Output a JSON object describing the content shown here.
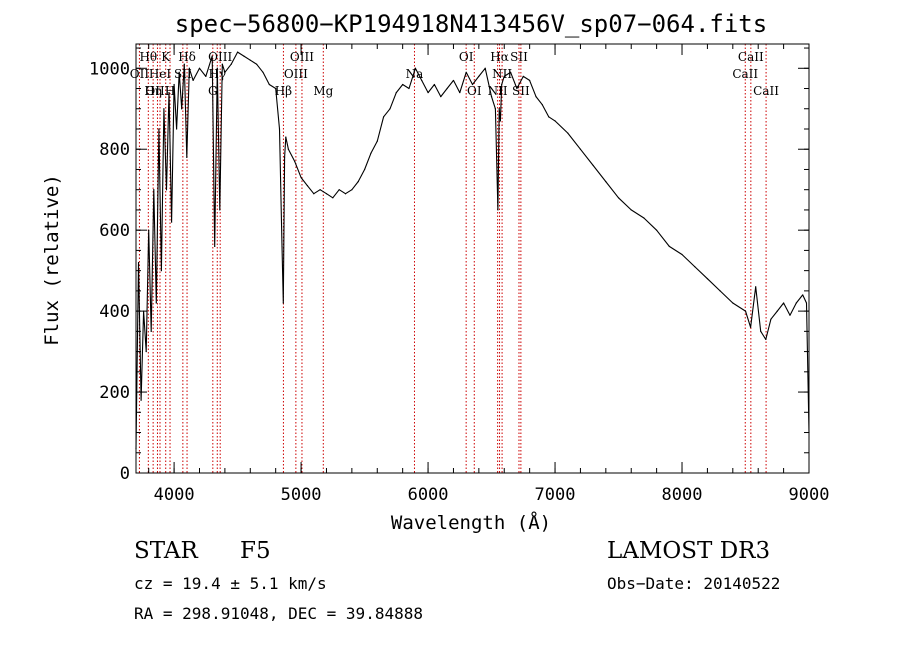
{
  "chart_data": {
    "type": "line",
    "title": "spec−56800−KP194918N413456V_sp07−064.fits",
    "xlabel": "Wavelength (Å)",
    "ylabel": "Flux (relative)",
    "xlim": [
      3700,
      9000
    ],
    "ylim": [
      0,
      1060
    ],
    "x_ticks": [
      4000,
      5000,
      6000,
      7000,
      8000,
      9000
    ],
    "y_ticks": [
      0,
      200,
      400,
      600,
      800,
      1000
    ],
    "x_minor_step": 200,
    "y_minor_step": 50,
    "grid": false,
    "series": [
      {
        "x": [
          3700,
          3720,
          3740,
          3760,
          3780,
          3800,
          3820,
          3840,
          3860,
          3880,
          3900,
          3920,
          3940,
          3960,
          3980,
          4000,
          4020,
          4040,
          4060,
          4080,
          4100,
          4120,
          4150,
          4200,
          4250,
          4300,
          4320,
          4340,
          4360,
          4380,
          4400,
          4450,
          4500,
          4550,
          4600,
          4650,
          4700,
          4750,
          4800,
          4830,
          4850,
          4860,
          4870,
          4880,
          4900,
          4950,
          5000,
          5050,
          5100,
          5150,
          5200,
          5250,
          5300,
          5350,
          5400,
          5450,
          5500,
          5550,
          5600,
          5650,
          5700,
          5750,
          5800,
          5850,
          5900,
          5950,
          6000,
          6050,
          6100,
          6150,
          6200,
          6250,
          6300,
          6350,
          6400,
          6450,
          6500,
          6530,
          6550,
          6560,
          6570,
          6580,
          6600,
          6650,
          6700,
          6750,
          6800,
          6850,
          6900,
          6950,
          7000,
          7100,
          7200,
          7300,
          7400,
          7500,
          7600,
          7700,
          7800,
          7900,
          8000,
          8100,
          8200,
          8300,
          8400,
          8500,
          8540,
          8580,
          8620,
          8660,
          8700,
          8750,
          8800,
          8850,
          8900,
          8950,
          8980,
          9000
        ],
        "y": [
          60,
          520,
          180,
          400,
          300,
          600,
          350,
          700,
          420,
          850,
          500,
          900,
          700,
          940,
          620,
          960,
          850,
          990,
          900,
          1010,
          780,
          1000,
          970,
          1000,
          980,
          1030,
          560,
          1000,
          650,
          1010,
          990,
          1010,
          1040,
          1030,
          1020,
          1010,
          990,
          960,
          950,
          850,
          560,
          420,
          780,
          830,
          800,
          770,
          730,
          710,
          690,
          700,
          690,
          680,
          700,
          690,
          700,
          720,
          750,
          790,
          820,
          880,
          900,
          940,
          960,
          950,
          1000,
          970,
          940,
          960,
          930,
          950,
          970,
          940,
          990,
          960,
          980,
          1000,
          930,
          900,
          650,
          900,
          870,
          960,
          980,
          990,
          950,
          980,
          970,
          930,
          910,
          880,
          870,
          840,
          800,
          760,
          720,
          680,
          650,
          630,
          600,
          560,
          540,
          510,
          480,
          450,
          420,
          400,
          360,
          460,
          350,
          330,
          380,
          400,
          420,
          390,
          420,
          440,
          420,
          100
        ]
      }
    ],
    "line_markers": [
      {
        "label": "Hθ",
        "x": 3797,
        "row": 1
      },
      {
        "label": "OII",
        "x": 3727,
        "row": 2
      },
      {
        "label": "OIII",
        "x": 3869,
        "row": 3
      },
      {
        "label": "HeI",
        "x": 3889,
        "row": 2
      },
      {
        "label": "Hη",
        "x": 3835,
        "row": 3
      },
      {
        "label": "K",
        "x": 3934,
        "row": 1
      },
      {
        "label": "SII",
        "x": 4069,
        "row": 2
      },
      {
        "label": "H",
        "x": 3968,
        "row": 3
      },
      {
        "label": "Hδ",
        "x": 4102,
        "row": 1
      },
      {
        "label": "OIII",
        "x": 4363,
        "row": 1
      },
      {
        "label": "Hγ",
        "x": 4340,
        "row": 2
      },
      {
        "label": "G",
        "x": 4305,
        "row": 3
      },
      {
        "label": "Hβ",
        "x": 4861,
        "row": 3
      },
      {
        "label": "OIII",
        "x": 5007,
        "row": 1
      },
      {
        "label": "OIII",
        "x": 4959,
        "row": 2
      },
      {
        "label": "Mg",
        "x": 5175,
        "row": 3
      },
      {
        "label": "Na",
        "x": 5893,
        "row": 2
      },
      {
        "label": "OI",
        "x": 6300,
        "row": 1
      },
      {
        "label": "OI",
        "x": 6364,
        "row": 3
      },
      {
        "label": "Hα",
        "x": 6563,
        "row": 1
      },
      {
        "label": "SII",
        "x": 6716,
        "row": 1
      },
      {
        "label": "NII",
        "x": 6548,
        "row": 3
      },
      {
        "label": "NII",
        "x": 6583,
        "row": 2
      },
      {
        "label": "SII",
        "x": 6731,
        "row": 3
      },
      {
        "label": "CaII",
        "x": 8542,
        "row": 1
      },
      {
        "label": "CaII",
        "x": 8498,
        "row": 2
      },
      {
        "label": "CaII",
        "x": 8662,
        "row": 3
      }
    ]
  },
  "info": {
    "object_class": "STAR",
    "subclass": "F5",
    "survey": "LAMOST DR3",
    "cz": "cz = 19.4 ± 5.1 km/s",
    "obs_date": "Obs−Date: 20140522",
    "coords": "RA = 298.91048, DEC =  39.84888"
  },
  "colors": {
    "line_marker": "#cc0000",
    "spectrum": "#000000",
    "axes": "#000000"
  }
}
